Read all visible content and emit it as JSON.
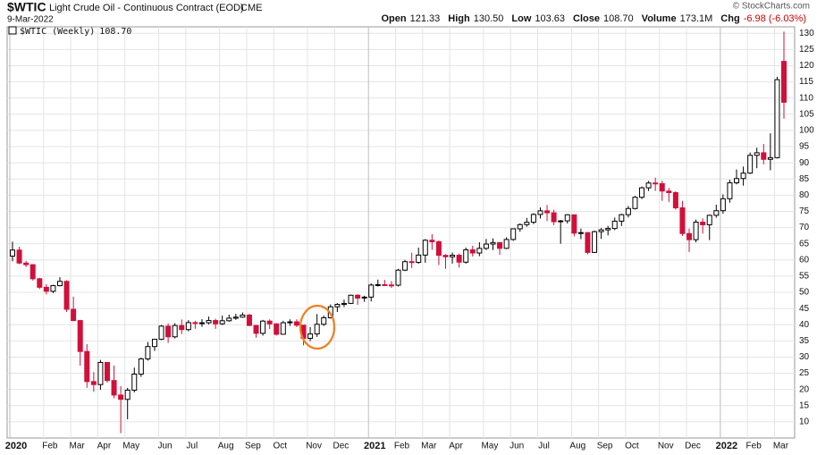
{
  "header": {
    "symbol": "$WTIC",
    "description": "Light Crude Oil - Continuous Contract (EOD)",
    "exchange": "CME",
    "date": "9-Mar-2022",
    "copyright": "© StockCharts.com",
    "quote": [
      {
        "label": "Open",
        "value": "121.33"
      },
      {
        "label": "High",
        "value": "130.50"
      },
      {
        "label": "Low",
        "value": "103.63"
      },
      {
        "label": "Close",
        "value": "108.70"
      },
      {
        "label": "Volume",
        "value": "173.1M"
      },
      {
        "label": "Chg",
        "value": "-6.98 (-6.03%)"
      }
    ]
  },
  "chart_data": {
    "type": "candlestick",
    "categories": [
      "2020",
      null,
      null,
      null,
      null,
      "Feb",
      null,
      null,
      null,
      "Mar",
      null,
      null,
      null,
      "Apr",
      null,
      null,
      null,
      "May",
      null,
      null,
      null,
      null,
      "Jun",
      null,
      null,
      null,
      "Jul",
      null,
      null,
      null,
      null,
      "Aug",
      null,
      null,
      null,
      "Sep",
      null,
      null,
      null,
      "Oct",
      null,
      null,
      null,
      null,
      "Nov",
      null,
      null,
      null,
      "Dec",
      null,
      null,
      null,
      null,
      "2021",
      null,
      null,
      null,
      "Feb",
      null,
      null,
      null,
      "Mar",
      null,
      null,
      null,
      "Apr",
      null,
      null,
      null,
      null,
      "May",
      null,
      null,
      null,
      "Jun",
      null,
      null,
      null,
      "Jul",
      null,
      null,
      null,
      null,
      "Aug",
      null,
      null,
      null,
      "Sep",
      null,
      null,
      null,
      "Oct",
      null,
      null,
      null,
      null,
      "Nov",
      null,
      null,
      null,
      "Dec",
      null,
      null,
      null,
      null,
      "2022",
      null,
      null,
      null,
      "Feb",
      null,
      null,
      null,
      "Mar",
      null
    ],
    "series": [
      {
        "name": "$WTIC (Weekly)",
        "legend_value": "108.70",
        "up_color": "#000000",
        "down_color": "#d0103a",
        "open": [
          61.18,
          63.05,
          59.04,
          58.54,
          54.19,
          51.56,
          50.32,
          52.05,
          53.38,
          44.76,
          41.28,
          31.73,
          22.43,
          21.51,
          28.34,
          22.76,
          18.27,
          16.94,
          19.78,
          24.74,
          29.43,
          33.25,
          35.49,
          39.55,
          36.26,
          39.75,
          38.49,
          40.65,
          40.55,
          40.59,
          41.29,
          40.27,
          41.22,
          42.01,
          42.34,
          42.97,
          39.77,
          37.33,
          41.11,
          40.25,
          37.05,
          40.6,
          40.88,
          39.85,
          35.79,
          37.14,
          40.13,
          42.15,
          45.53,
          46.26,
          46.57,
          49.1,
          48.23,
          48.52,
          52.24,
          52.36,
          52.27,
          52.2,
          56.85,
          59.47,
          59.24,
          61.5,
          66.09,
          65.61,
          61.42,
          60.97,
          61.45,
          59.32,
          63.13,
          62.14,
          63.58,
          64.9,
          65.37,
          63.58,
          66.32,
          69.62,
          70.91,
          71.64,
          74.05,
          75.16,
          74.56,
          71.81,
          72.07,
          73.95,
          68.28,
          68.44,
          62.32,
          68.74,
          69.29,
          69.72,
          71.97,
          73.98,
          75.88,
          79.35,
          82.28,
          83.76,
          83.57,
          81.27,
          80.79,
          76.1,
          68.15,
          66.26,
          71.67,
          70.86,
          73.79,
          75.21,
          78.9,
          83.82,
          85.14,
          86.82,
          92.31,
          93.1,
          91.07,
          91.59,
          121.33
        ],
        "high": [
          65.65,
          64.09,
          59.7,
          58.7,
          54.5,
          52.5,
          52.33,
          54.66,
          53.73,
          48.66,
          41.5,
          34.0,
          25.35,
          29.13,
          28.36,
          27.4,
          21.0,
          20.48,
          26.74,
          29.8,
          34.66,
          35.6,
          39.9,
          40.44,
          40.47,
          41.63,
          41.41,
          41.2,
          41.7,
          42.51,
          41.85,
          42.82,
          43.1,
          43.37,
          43.78,
          43.38,
          39.89,
          41.48,
          41.63,
          40.5,
          41.22,
          41.64,
          41.66,
          39.9,
          39.28,
          43.27,
          42.8,
          46.26,
          46.68,
          47.74,
          49.28,
          49.43,
          48.96,
          52.75,
          53.93,
          53.83,
          53.48,
          57.26,
          60.0,
          62.26,
          63.81,
          66.4,
          67.98,
          66.04,
          61.76,
          62.3,
          61.97,
          63.81,
          64.37,
          65.47,
          66.48,
          66.66,
          65.49,
          67.0,
          69.76,
          71.29,
          72.99,
          74.45,
          76.22,
          76.98,
          75.52,
          72.36,
          74.15,
          73.95,
          69.69,
          68.6,
          69.07,
          69.84,
          70.5,
          73.08,
          74.27,
          76.67,
          79.78,
          82.67,
          84.4,
          85.41,
          84.45,
          82.25,
          81.2,
          78.25,
          69.68,
          72.47,
          72.82,
          73.99,
          77.07,
          80.24,
          84.78,
          87.95,
          88.84,
          93.17,
          94.66,
          95.82,
          99.1,
          116.57,
          130.5
        ],
        "low": [
          59.6,
          58.7,
          57.8,
          53.65,
          51.0,
          49.31,
          49.75,
          51.82,
          43.9,
          41.05,
          27.34,
          20.52,
          19.27,
          19.9,
          22.1,
          17.3,
          6.5,
          10.8,
          19.1,
          23.9,
          28.9,
          31.9,
          35.25,
          34.36,
          35.75,
          37.08,
          37.95,
          38.76,
          39.34,
          40.11,
          38.72,
          39.9,
          40.93,
          41.51,
          42.1,
          39.54,
          35.98,
          36.63,
          38.68,
          36.63,
          36.93,
          39.62,
          39.24,
          33.64,
          34.92,
          36.25,
          39.61,
          41.87,
          43.92,
          45.47,
          46.38,
          46.16,
          47.08,
          47.18,
          51.8,
          51.97,
          51.36,
          51.79,
          56.55,
          57.51,
          58.8,
          59.14,
          63.13,
          58.42,
          57.25,
          58.86,
          57.63,
          58.86,
          61.07,
          61.15,
          63.06,
          63.05,
          61.56,
          63.35,
          65.93,
          68.71,
          70.26,
          71.06,
          72.8,
          71.99,
          70.76,
          65.01,
          71.25,
          67.26,
          66.43,
          61.74,
          62.15,
          66.5,
          67.58,
          69.21,
          70.47,
          73.1,
          75.6,
          78.81,
          81.28,
          81.3,
          78.25,
          77.91,
          75.53,
          67.4,
          62.43,
          65.44,
          68.14,
          66.12,
          73.04,
          74.27,
          77.7,
          83.33,
          82.95,
          86.55,
          88.33,
          89.55,
          87.69,
          91.33,
          103.63
        ],
        "close": [
          63.05,
          59.04,
          58.54,
          54.19,
          51.56,
          50.32,
          52.05,
          53.38,
          44.76,
          41.28,
          31.73,
          22.43,
          21.51,
          28.34,
          22.76,
          18.27,
          16.94,
          19.78,
          24.74,
          29.43,
          33.25,
          35.49,
          39.55,
          36.26,
          39.75,
          38.49,
          40.65,
          40.55,
          40.59,
          41.29,
          40.27,
          41.22,
          42.01,
          42.34,
          42.97,
          39.77,
          37.33,
          41.11,
          40.25,
          37.05,
          40.6,
          40.88,
          39.85,
          35.79,
          37.14,
          40.13,
          42.15,
          45.53,
          46.26,
          46.57,
          49.1,
          48.23,
          48.52,
          52.24,
          52.36,
          52.27,
          52.2,
          56.85,
          59.47,
          59.24,
          61.5,
          66.09,
          65.61,
          61.42,
          60.97,
          61.45,
          59.32,
          63.13,
          62.14,
          63.58,
          64.9,
          65.37,
          63.58,
          66.32,
          69.62,
          70.91,
          71.64,
          74.05,
          75.16,
          74.56,
          71.81,
          72.07,
          73.95,
          68.28,
          68.44,
          62.32,
          68.74,
          69.29,
          69.72,
          71.97,
          73.98,
          75.88,
          79.35,
          82.28,
          83.76,
          83.57,
          81.27,
          80.79,
          76.1,
          68.15,
          66.26,
          71.67,
          70.86,
          73.79,
          75.21,
          78.9,
          83.82,
          85.14,
          86.82,
          92.31,
          93.1,
          91.07,
          91.59,
          115.68,
          108.7
        ]
      }
    ],
    "ylim": [
      5,
      132
    ],
    "yticks": [
      10,
      15,
      20,
      25,
      30,
      35,
      40,
      45,
      50,
      55,
      60,
      65,
      70,
      75,
      80,
      85,
      90,
      95,
      100,
      105,
      110,
      115,
      120,
      125,
      130
    ],
    "grid": true
  }
}
